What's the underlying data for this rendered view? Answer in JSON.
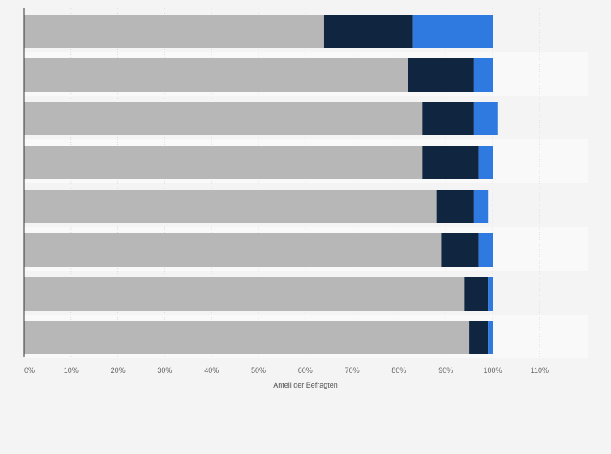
{
  "chart_data": {
    "type": "bar",
    "orientation": "horizontal",
    "stacked": true,
    "categories": [
      "",
      "",
      "",
      "",
      "",
      "",
      "",
      ""
    ],
    "series": [
      {
        "color": "#b7b7b7",
        "values": [
          64,
          82,
          85,
          85,
          88,
          89,
          94,
          95
        ]
      },
      {
        "color": "#0f2540",
        "values": [
          19,
          14,
          11,
          12,
          8,
          8,
          5,
          4
        ]
      },
      {
        "color": "#2e7ae0",
        "values": [
          17,
          4,
          5,
          3,
          3,
          3,
          1,
          1
        ]
      }
    ],
    "x_ticks": [
      "0%",
      "10%",
      "20%",
      "30%",
      "40%",
      "50%",
      "60%",
      "70%",
      "80%",
      "90%",
      "100%",
      "110%"
    ],
    "xlabel": "Anteil der Befragten",
    "ylabel": "",
    "xlim": [
      0,
      120
    ],
    "grid": true,
    "legend": "none"
  }
}
